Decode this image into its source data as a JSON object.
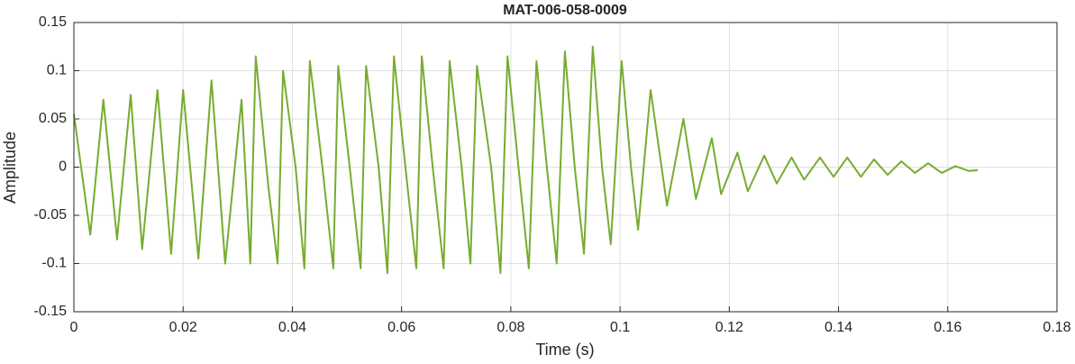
{
  "chart_data": {
    "type": "line",
    "title": "MAT-006-058-0009",
    "x_label": "Time (s)",
    "y_label": "Amplitude",
    "xlim": [
      0,
      0.18
    ],
    "xticks": [
      0,
      0.02,
      0.04,
      0.06,
      0.08,
      0.1,
      0.12,
      0.14,
      0.16,
      0.18
    ],
    "ylim": [
      -0.15,
      0.15
    ],
    "yticks": [
      -0.15,
      -0.1,
      -0.05,
      0,
      0.05,
      0.1,
      0.15
    ],
    "grid": true,
    "x": [
      0,
      0.003,
      0.0054,
      0.0079,
      0.0104,
      0.0125,
      0.0153,
      0.0178,
      0.02,
      0.0228,
      0.0252,
      0.0277,
      0.0307,
      0.0323,
      0.0333,
      0.0356,
      0.0373,
      0.0383,
      0.0406,
      0.0422,
      0.0432,
      0.0455,
      0.0475,
      0.0484,
      0.0505,
      0.0525,
      0.0535,
      0.0558,
      0.0574,
      0.0586,
      0.0607,
      0.0627,
      0.0637,
      0.0657,
      0.0677,
      0.0688,
      0.071,
      0.0726,
      0.0738,
      0.0764,
      0.0781,
      0.0794,
      0.0814,
      0.0833,
      0.0847,
      0.0866,
      0.0884,
      0.0899,
      0.0917,
      0.0934,
      0.095,
      0.0967,
      0.0983,
      0.1003,
      0.102,
      0.1033,
      0.1056,
      0.1086,
      0.1116,
      0.1139,
      0.1168,
      0.1185,
      0.1215,
      0.1234,
      0.1264,
      0.1287,
      0.1314,
      0.1337,
      0.1366,
      0.1391,
      0.1416,
      0.1441,
      0.1465,
      0.149,
      0.1515,
      0.154,
      0.1564,
      0.1589,
      0.1614,
      0.1639,
      0.1655
    ],
    "series": [
      {
        "name": "Amplitude",
        "color": "#77ac30",
        "values": [
          0.055,
          -0.07,
          0.07,
          -0.075,
          0.075,
          -0.085,
          0.08,
          -0.09,
          0.08,
          -0.095,
          0.09,
          -0.1,
          0.07,
          -0.1,
          0.115,
          -0.02,
          -0.1,
          0.1,
          0,
          -0.105,
          0.11,
          0,
          -0.105,
          0.105,
          0,
          -0.105,
          0.105,
          0,
          -0.11,
          0.115,
          0,
          -0.105,
          0.115,
          0,
          -0.105,
          0.11,
          0,
          -0.1,
          0.105,
          0,
          -0.11,
          0.115,
          0,
          -0.105,
          0.11,
          0,
          -0.1,
          0.12,
          0,
          -0.09,
          0.125,
          0,
          -0.08,
          0.11,
          0,
          -0.065,
          0.08,
          -0.04,
          0.05,
          -0.033,
          0.03,
          -0.028,
          0.015,
          -0.025,
          0.012,
          -0.017,
          0.01,
          -0.013,
          0.01,
          -0.01,
          0.01,
          -0.01,
          0.008,
          -0.008,
          0.006,
          -0.006,
          0.004,
          -0.006,
          0.001,
          -0.004,
          -0.003
        ]
      }
    ]
  }
}
